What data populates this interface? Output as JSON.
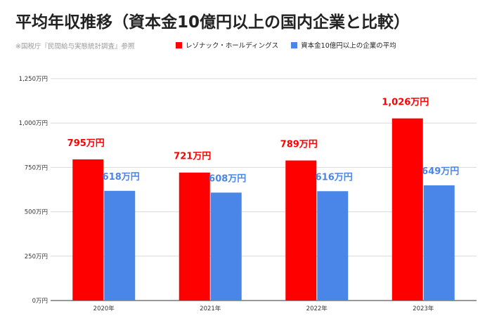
{
  "title": "平均年収推移（資本金10億円以上の国内企業と比較）",
  "source_note": "※国税庁『民間給与実態統計調査』参照",
  "colors": {
    "series1": "#ff0000",
    "series2": "#4a86e8"
  },
  "chart_data": {
    "type": "bar",
    "categories": [
      "2020年",
      "2021年",
      "2022年",
      "2023年"
    ],
    "series": [
      {
        "name": "レゾナック・ホールディングス",
        "values": [
          795,
          721,
          789,
          1026
        ],
        "labels": [
          "795万円",
          "721万円",
          "789万円",
          "1,026万円"
        ]
      },
      {
        "name": "資本金10億円以上の企業の平均",
        "values": [
          618,
          608,
          616,
          649
        ],
        "labels": [
          "618万円",
          "608万円",
          "616万円",
          "649万円"
        ]
      }
    ],
    "ylim": [
      0,
      1250
    ],
    "yticks": [
      0,
      250,
      500,
      750,
      1000,
      1250
    ],
    "ytick_labels": [
      "0万円",
      "250万円",
      "500万円",
      "750万円",
      "1,000万円",
      "1,250万円"
    ],
    "grid": true,
    "legend": "top"
  }
}
